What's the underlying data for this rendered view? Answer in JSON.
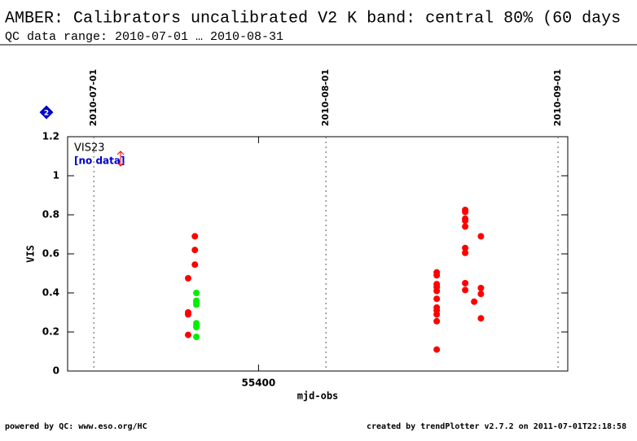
{
  "chart_data": {
    "type": "scatter",
    "title": "AMBER: Calibrators uncalibrated V2 K band: central 80% (60 days",
    "subtitle": "QC data range: 2010-07-01 … 2010-08-31",
    "panel_label": "VIS23",
    "panel_note": "[no data]",
    "panel_number": "2",
    "x_label": "mjd-obs",
    "y_label": "VIS",
    "xlim": [
      55374.5,
      55441.3
    ],
    "ylim": [
      0,
      1.2
    ],
    "xticks": [
      55400
    ],
    "yticks": [
      0,
      0.2,
      0.4,
      0.6,
      0.8,
      1,
      1.2
    ],
    "date_markers": [
      {
        "label": "2010-07-01",
        "x": 55378
      },
      {
        "label": "2010-08-01",
        "x": 55409
      },
      {
        "label": "2010-09-01",
        "x": 55440
      }
    ],
    "series": [
      {
        "color": "#ff0000",
        "x": [
          55390.6,
          55390.6,
          55390.6,
          55390.6,
          55391.5,
          55391.5,
          55391.5,
          55423.8,
          55423.8,
          55423.8,
          55423.8,
          55423.8,
          55423.8,
          55423.8,
          55423.8,
          55423.8,
          55423.8,
          55423.8,
          55427.6,
          55427.6,
          55427.6,
          55427.6,
          55427.6,
          55427.6,
          55427.6,
          55427.6,
          55427.6,
          55428.8,
          55429.7,
          55429.7,
          55429.7,
          55429.7
        ],
        "values": [
          0.475,
          0.3,
          0.29,
          0.185,
          0.69,
          0.62,
          0.545,
          0.505,
          0.49,
          0.445,
          0.43,
          0.41,
          0.37,
          0.325,
          0.31,
          0.29,
          0.255,
          0.11,
          0.825,
          0.815,
          0.78,
          0.77,
          0.74,
          0.63,
          0.605,
          0.45,
          0.415,
          0.355,
          0.69,
          0.425,
          0.395,
          0.27
        ]
      },
      {
        "color": "#00ee00",
        "x": [
          55391.7,
          55391.7,
          55391.7,
          55391.7,
          55391.7,
          55391.7,
          55391.7,
          55391.7
        ],
        "values": [
          0.4,
          0.36,
          0.34,
          0.35,
          0.245,
          0.23,
          0.225,
          0.175
        ]
      }
    ],
    "footer_left": "powered by QC: www.eso.org/HC",
    "footer_right": "created by trendPlotter v2.7.2 on 2011-07-01T22:18:58"
  }
}
